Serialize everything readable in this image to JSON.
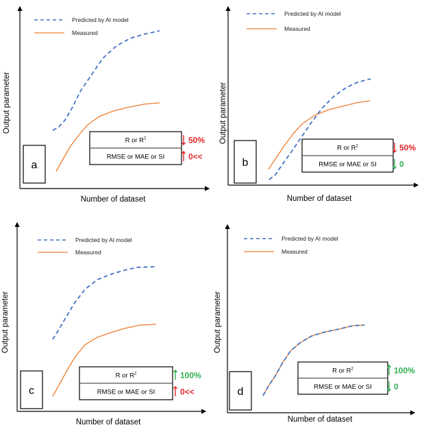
{
  "colors": {
    "predicted": "#4472c4",
    "measured": "#ed7d31",
    "bad": "#e3262b",
    "good": "#2fb04f"
  },
  "legend": {
    "predicted": "Predicted by AI model",
    "measured": "Measured"
  },
  "axes": {
    "x_label": "Number of dataset",
    "y_label": "Output parameter"
  },
  "metrics": {
    "row1": "R or R",
    "row1_sup": "2",
    "row2": "RMSE or MAE or SI"
  },
  "panels": [
    {
      "id": "a",
      "r_change": "50%",
      "r_direction": "down",
      "r_status": "bad",
      "err_change": "0<<",
      "err_direction": "up",
      "err_status": "bad"
    },
    {
      "id": "b",
      "r_change": "50%",
      "r_direction": "down",
      "r_status": "bad",
      "err_change": "0",
      "err_direction": "down",
      "err_status": "good"
    },
    {
      "id": "c",
      "r_change": "100%",
      "r_direction": "up",
      "r_status": "good",
      "err_change": "0<<",
      "err_direction": "up",
      "err_status": "bad"
    },
    {
      "id": "d",
      "r_change": "100%",
      "r_direction": "up",
      "r_status": "good",
      "err_change": "0",
      "err_direction": "down",
      "err_status": "good"
    }
  ]
}
